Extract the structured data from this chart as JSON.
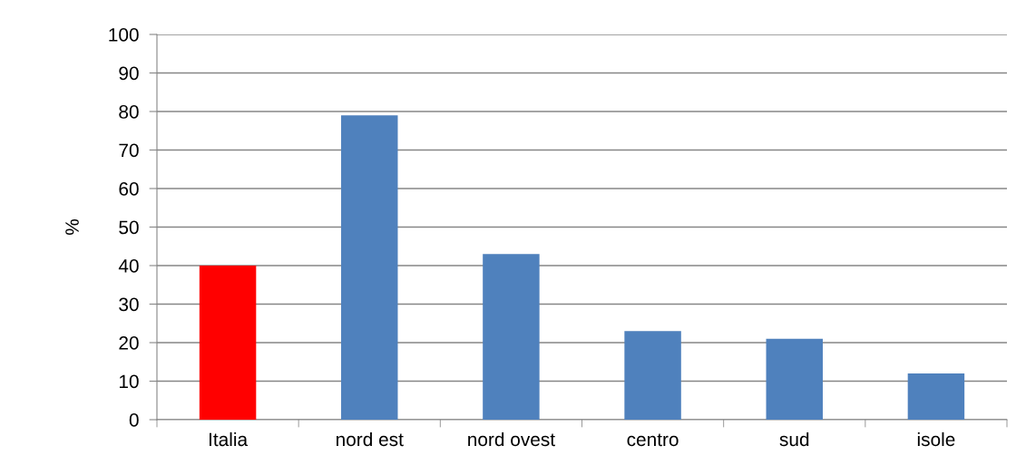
{
  "chart_data": {
    "type": "bar",
    "ylabel": "%",
    "categories": [
      "Italia",
      "nord est",
      "nord ovest",
      "centro",
      "sud",
      "isole"
    ],
    "values": [
      40,
      79,
      43,
      23,
      21,
      12
    ],
    "colors": [
      "#ff0000",
      "#4f81bd",
      "#4f81bd",
      "#4f81bd",
      "#4f81bd",
      "#4f81bd"
    ],
    "ylim": [
      0,
      100
    ],
    "yticks": [
      0,
      10,
      20,
      30,
      40,
      50,
      60,
      70,
      80,
      90,
      100
    ],
    "grid": "y"
  }
}
